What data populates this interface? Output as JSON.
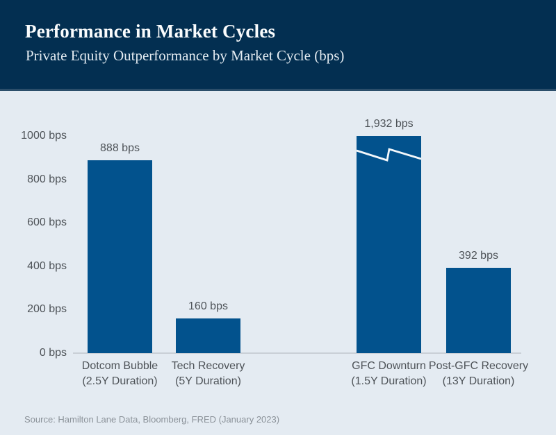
{
  "header": {
    "title": "Performance in Market Cycles",
    "subtitle": "Private Equity Outperformance by Market Cycle (bps)"
  },
  "footer": {
    "source": "Source: Hamilton Lane Data, Bloomberg, FRED (January 2023)"
  },
  "colors": {
    "page_bg": "#e4ebf2",
    "header_bg": "#032f51",
    "header_edge": "#2b4e6a",
    "bar": "#02528d",
    "label_text": "#4e5358",
    "axis_line": "#c9cfd6",
    "source_text": "#8b9299",
    "break_mark": "#f4f8fb"
  },
  "chart_data": {
    "type": "bar",
    "title": "Performance in Market Cycles",
    "subtitle": "Private Equity Outperformance by Market Cycle (bps)",
    "unit": "bps",
    "grid": false,
    "legend": false,
    "y_axis": {
      "min": 0,
      "max_displayed": 1000,
      "ticks": [
        0,
        200,
        400,
        600,
        800,
        1000
      ],
      "tick_labels": [
        "0 bps",
        "200 bps",
        "400 bps",
        "600 bps",
        "800 bps",
        "1000 bps"
      ]
    },
    "axis_break_at": 1000,
    "categories": [
      "Dotcom Bubble (2.5Y Duration)",
      "Tech Recovery (5Y Duration)",
      "GFC Downturn (1.5Y Duration)",
      "Post-GFC Recovery (13Y Duration)"
    ],
    "values": [
      888,
      160,
      1932,
      392
    ],
    "bars": [
      {
        "label": "Dotcom Bubble",
        "duration": "(2.5Y Duration)",
        "value": 888,
        "value_label": "888 bps",
        "clipped": false
      },
      {
        "label": "Tech Recovery",
        "duration": "(5Y Duration)",
        "value": 160,
        "value_label": "160 bps",
        "clipped": false
      },
      {
        "label": "GFC Downturn",
        "duration": "(1.5Y Duration)",
        "value": 1932,
        "value_label": "1,932 bps",
        "clipped": true
      },
      {
        "label": "Post-GFC Recovery",
        "duration": "(13Y Duration)",
        "value": 392,
        "value_label": "392 bps",
        "clipped": false
      }
    ]
  }
}
